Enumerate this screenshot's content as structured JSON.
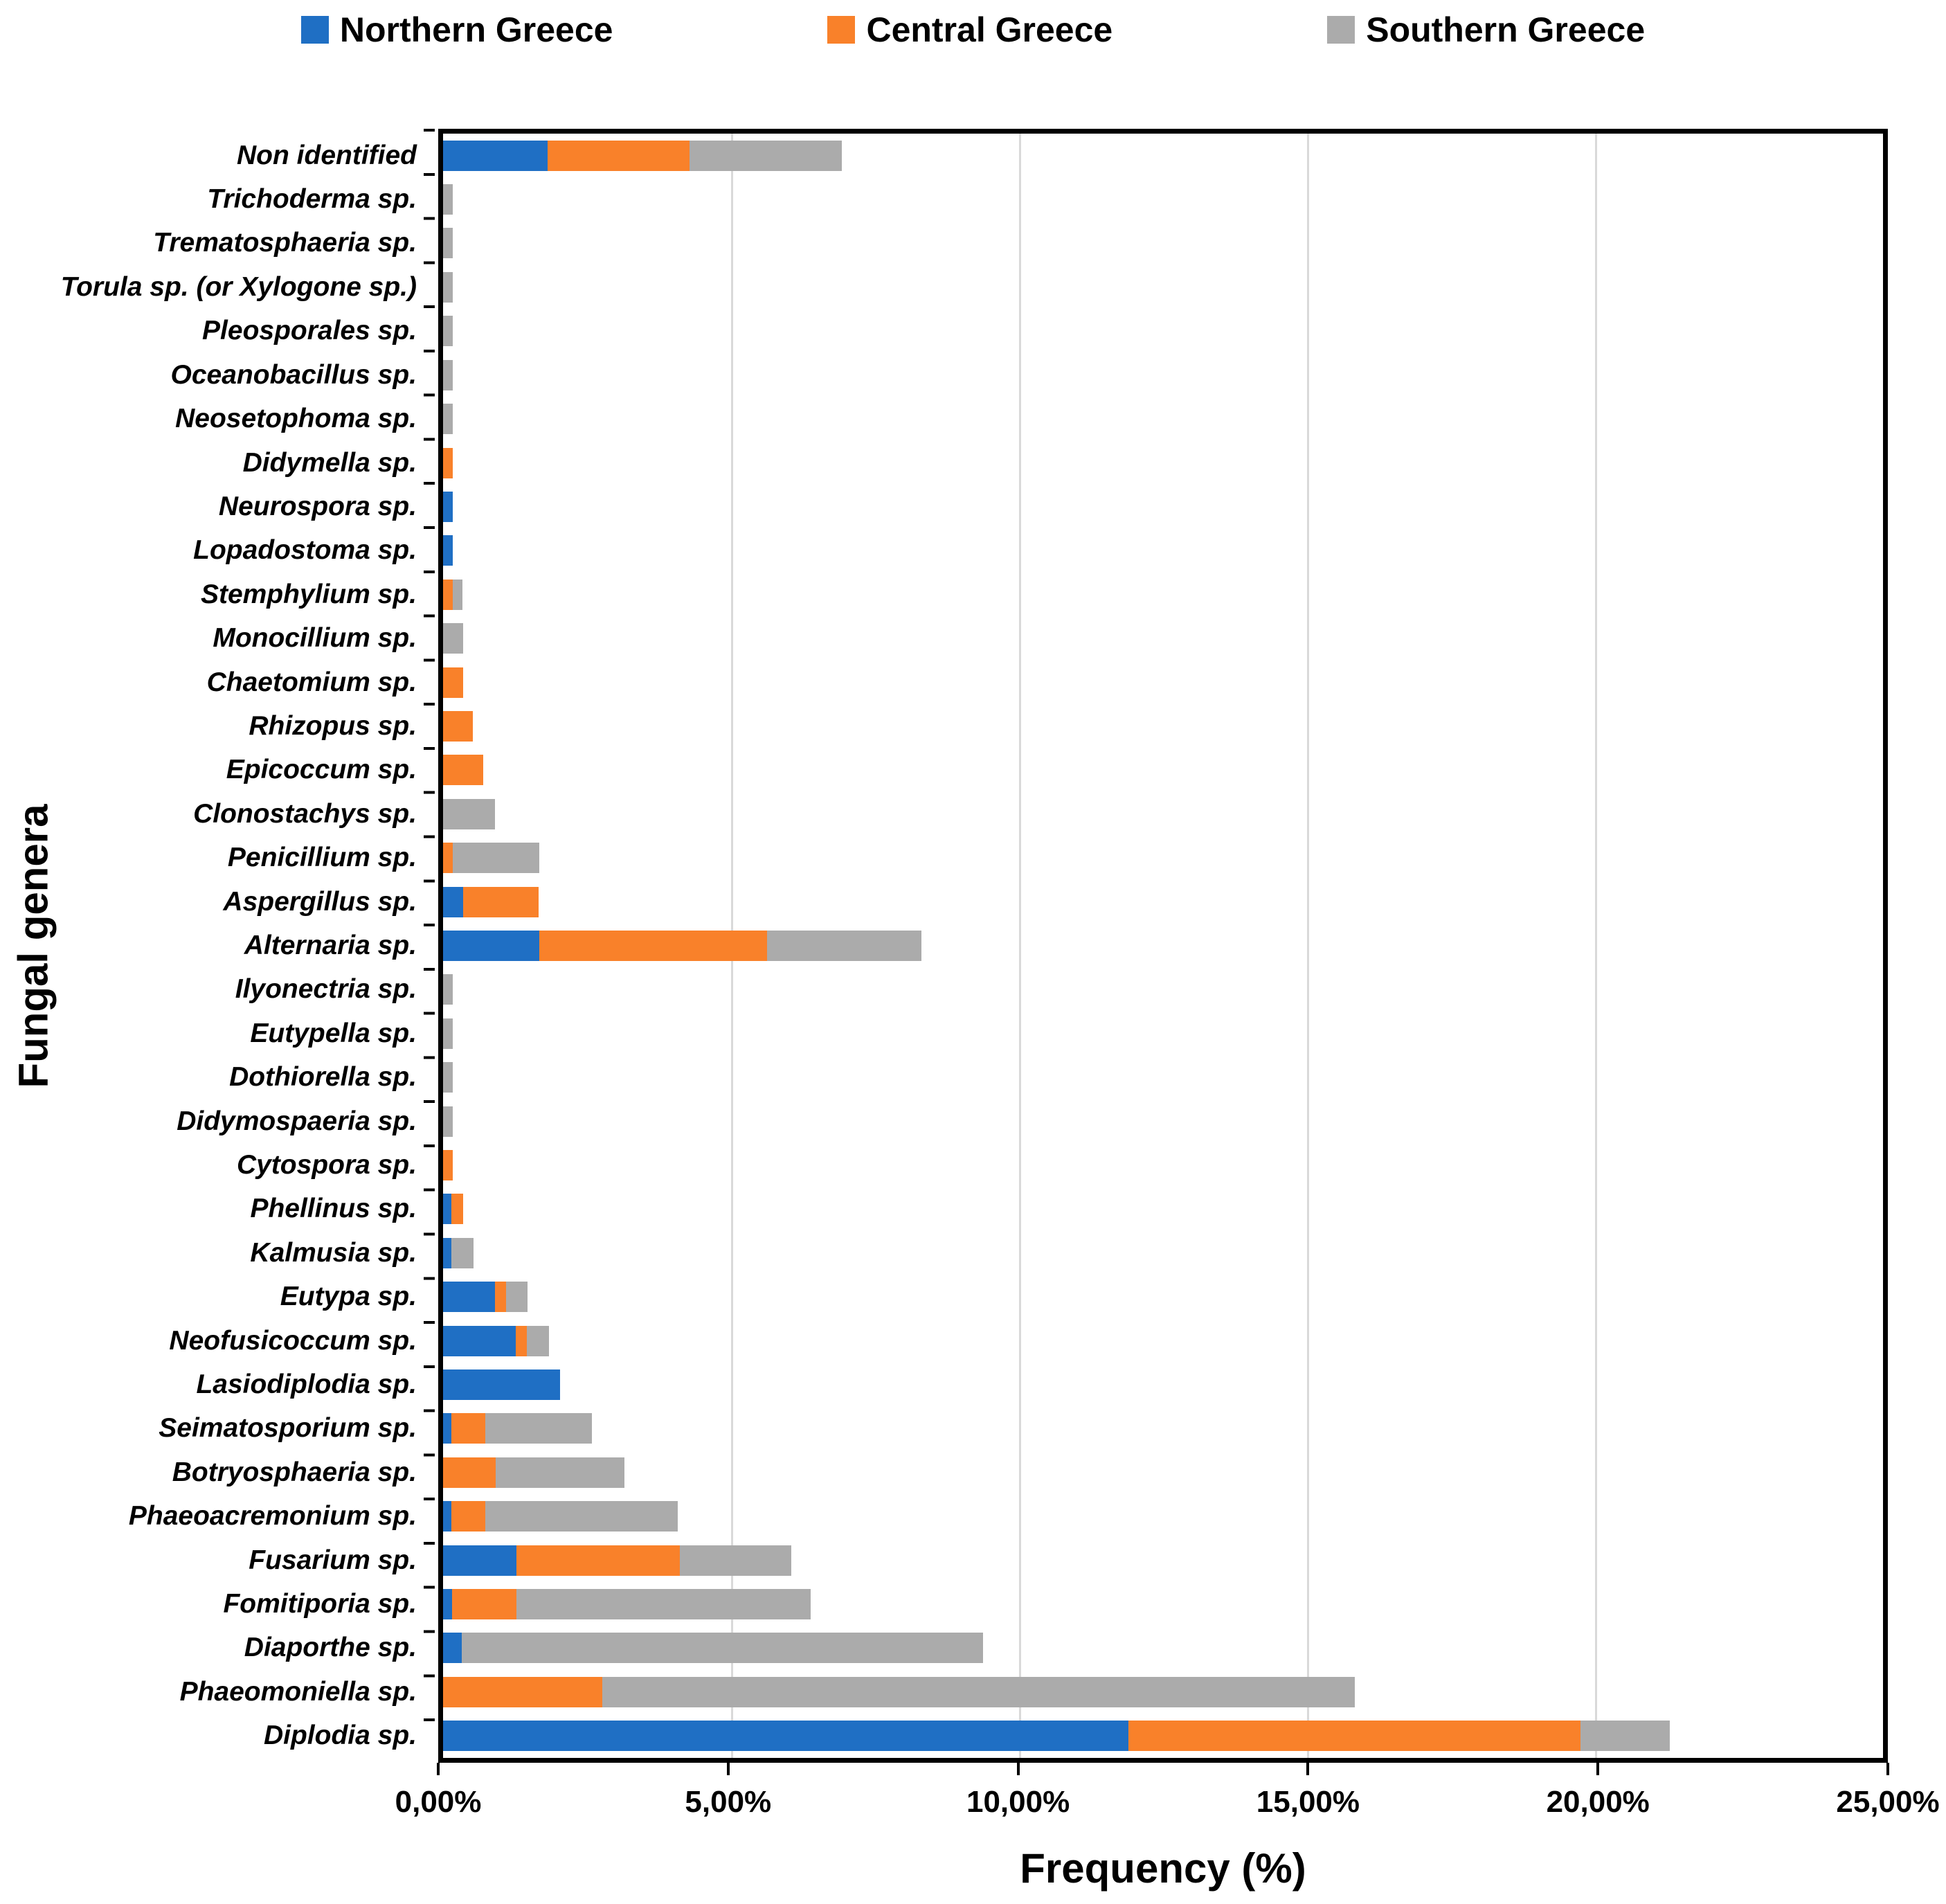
{
  "legend": [
    {
      "label": "Northern Greece",
      "color": "#1F6FC4"
    },
    {
      "label": "Central Greece",
      "color": "#F9812A"
    },
    {
      "label": "Southern Greece",
      "color": "#ABABAB"
    }
  ],
  "chart_data": {
    "type": "bar",
    "orientation": "horizontal",
    "stacked": true,
    "title": "",
    "xlabel": "Frequency (%)",
    "ylabel": "Fungal genera",
    "xlim": [
      0,
      25
    ],
    "x_tick_values": [
      0,
      5,
      10,
      15,
      20,
      25
    ],
    "x_tick_labels": [
      "0,00%",
      "5,00%",
      "10,00%",
      "15,00%",
      "20,00%",
      "25,00%"
    ],
    "grid": true,
    "gridline_color": "#d9d9d9",
    "legend_position": "top",
    "categories": [
      "Non identified",
      "Trichoderma sp.",
      "Trematosphaeria sp.",
      "Torula sp. (or Xylogone sp.)",
      "Pleosporales sp.",
      "Oceanobacillus sp.",
      "Neosetophoma sp.",
      "Didymella sp.",
      "Neurospora sp.",
      "Lopadostoma sp.",
      "Stemphylium sp.",
      "Monocillium sp.",
      "Chaetomium sp.",
      "Rhizopus sp.",
      "Epicoccum sp.",
      "Clonostachys sp.",
      "Penicillium sp.",
      "Aspergillus sp.",
      "Alternaria sp.",
      "Ilyonectria sp.",
      "Eutypella sp.",
      "Dothiorella sp.",
      "Didymospaeria sp.",
      "Cytospora sp.",
      "Phellinus sp.",
      "Kalmusia sp.",
      "Eutypa sp.",
      "Neofusicoccum sp.",
      "Lasiodiplodia sp.",
      "Seimatosporium sp.",
      "Botryosphaeria sp.",
      "Phaeoacremonium sp.",
      "Fusarium sp.",
      "Fomitiporia sp.",
      "Diaporthe sp.",
      "Phaeomoniella sp.",
      "Diplodia sp."
    ],
    "series": [
      {
        "name": "Northern Greece",
        "color": "#1F6FC4",
        "values": [
          1.82,
          0,
          0,
          0,
          0,
          0,
          0,
          0,
          0.17,
          0.17,
          0,
          0,
          0,
          0,
          0,
          0,
          0,
          0.35,
          1.67,
          0,
          0,
          0,
          0,
          0,
          0.14,
          0.15,
          0.9,
          1.26,
          2.03,
          0.14,
          0,
          0.14,
          1.28,
          0.16,
          0.33,
          0,
          11.9
        ]
      },
      {
        "name": "Central Greece",
        "color": "#F9812A",
        "values": [
          2.46,
          0,
          0,
          0,
          0,
          0,
          0,
          0.17,
          0,
          0,
          0.17,
          0,
          0.35,
          0.52,
          0.7,
          0,
          0.17,
          1.31,
          3.96,
          0,
          0,
          0,
          0,
          0.17,
          0.21,
          0,
          0.19,
          0.2,
          0,
          0.59,
          0.91,
          0.59,
          2.83,
          1.12,
          0,
          2.76,
          7.85
        ]
      },
      {
        "name": "Southern Greece",
        "color": "#ABABAB",
        "values": [
          2.64,
          0.17,
          0.17,
          0.17,
          0.17,
          0.17,
          0.17,
          0,
          0,
          0,
          0.17,
          0.35,
          0,
          0,
          0,
          0.9,
          1.5,
          0,
          2.67,
          0.17,
          0.17,
          0.17,
          0.17,
          0,
          0,
          0.38,
          0.38,
          0.38,
          0,
          1.86,
          2.24,
          3.35,
          1.93,
          5.1,
          9.05,
          13.07,
          1.55
        ]
      }
    ]
  }
}
